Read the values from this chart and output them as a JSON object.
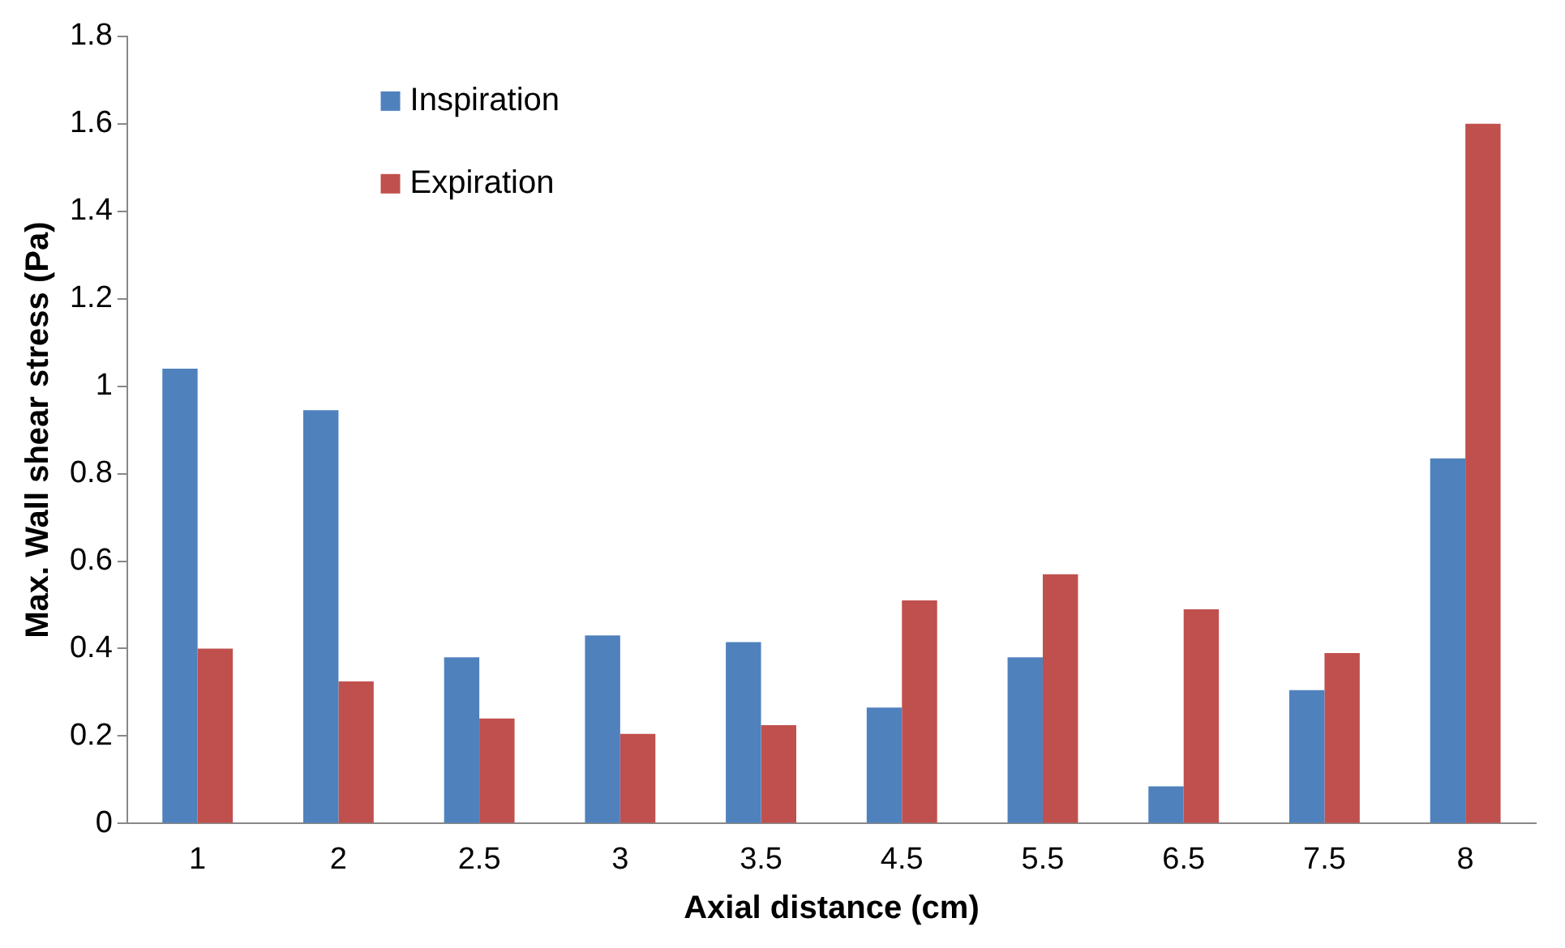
{
  "chart_data": {
    "type": "bar",
    "xlabel": "Axial distance (cm)",
    "ylabel": "Max. Wall shear stress (Pa)",
    "categories": [
      "1",
      "2",
      "2.5",
      "3",
      "3.5",
      "4.5",
      "5.5",
      "6.5",
      "7.5",
      "8"
    ],
    "series": [
      {
        "name": "Inspiration",
        "color": "#4f81bd",
        "values": [
          1.04,
          0.945,
          0.38,
          0.43,
          0.415,
          0.265,
          0.38,
          0.085,
          0.305,
          0.835
        ]
      },
      {
        "name": "Expiration",
        "color": "#c0504d",
        "values": [
          0.4,
          0.325,
          0.24,
          0.205,
          0.225,
          0.51,
          0.57,
          0.49,
          0.39,
          1.6
        ]
      }
    ],
    "ylim": [
      0,
      1.8
    ],
    "yticks": [
      0,
      0.2,
      0.4,
      0.6,
      0.8,
      1,
      1.2,
      1.4,
      1.6,
      1.8
    ],
    "grid": false,
    "legend": "top left"
  }
}
